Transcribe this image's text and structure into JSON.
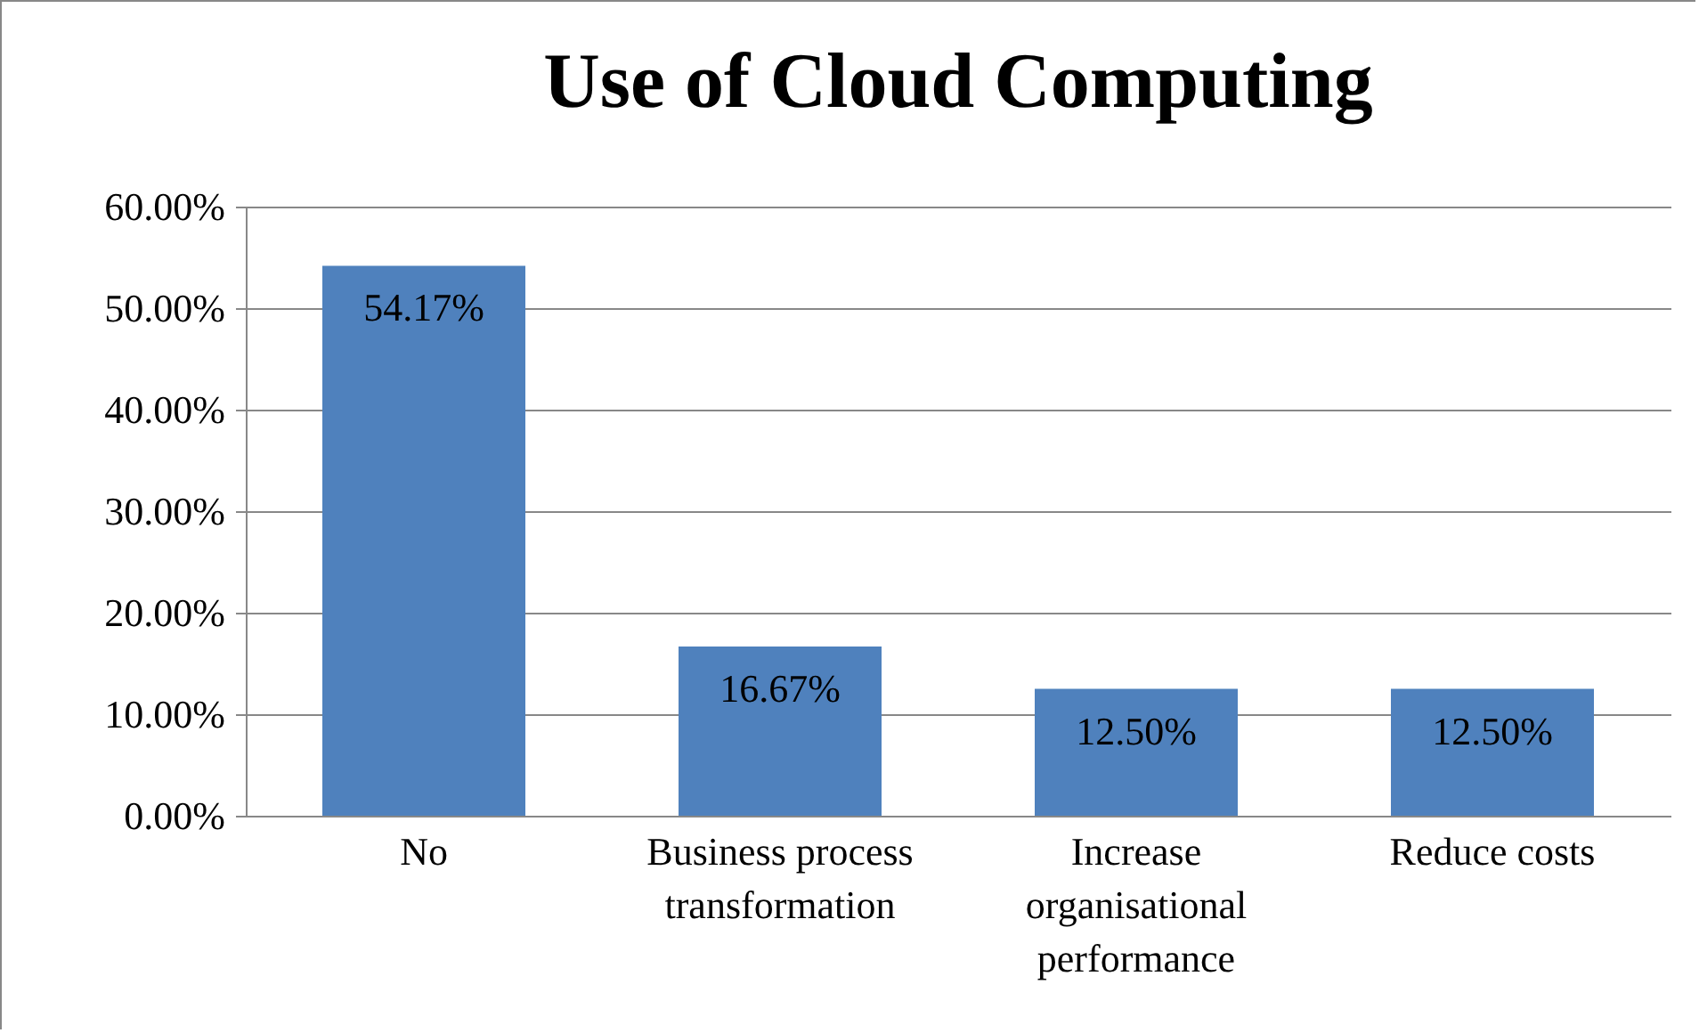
{
  "chart_data": {
    "type": "bar",
    "title": "Use of Cloud Computing",
    "categories": [
      "No",
      "Business process transformation",
      "Increase organisational performance",
      "Reduce costs"
    ],
    "values": [
      54.17,
      16.67,
      12.5,
      12.5
    ],
    "value_labels": [
      "54.17%",
      "16.67%",
      "12.50%",
      "12.50%"
    ],
    "color": "#4f81bd",
    "ylim": [
      0,
      60
    ],
    "yticks": [
      {
        "value": 0,
        "label": "0.00%"
      },
      {
        "value": 10,
        "label": "10.00%"
      },
      {
        "value": 20,
        "label": "20.00%"
      },
      {
        "value": 30,
        "label": "30.00%"
      },
      {
        "value": 40,
        "label": "40.00%"
      },
      {
        "value": 50,
        "label": "50.00%"
      },
      {
        "value": 60,
        "label": "60.00%"
      }
    ],
    "grid": "y"
  }
}
